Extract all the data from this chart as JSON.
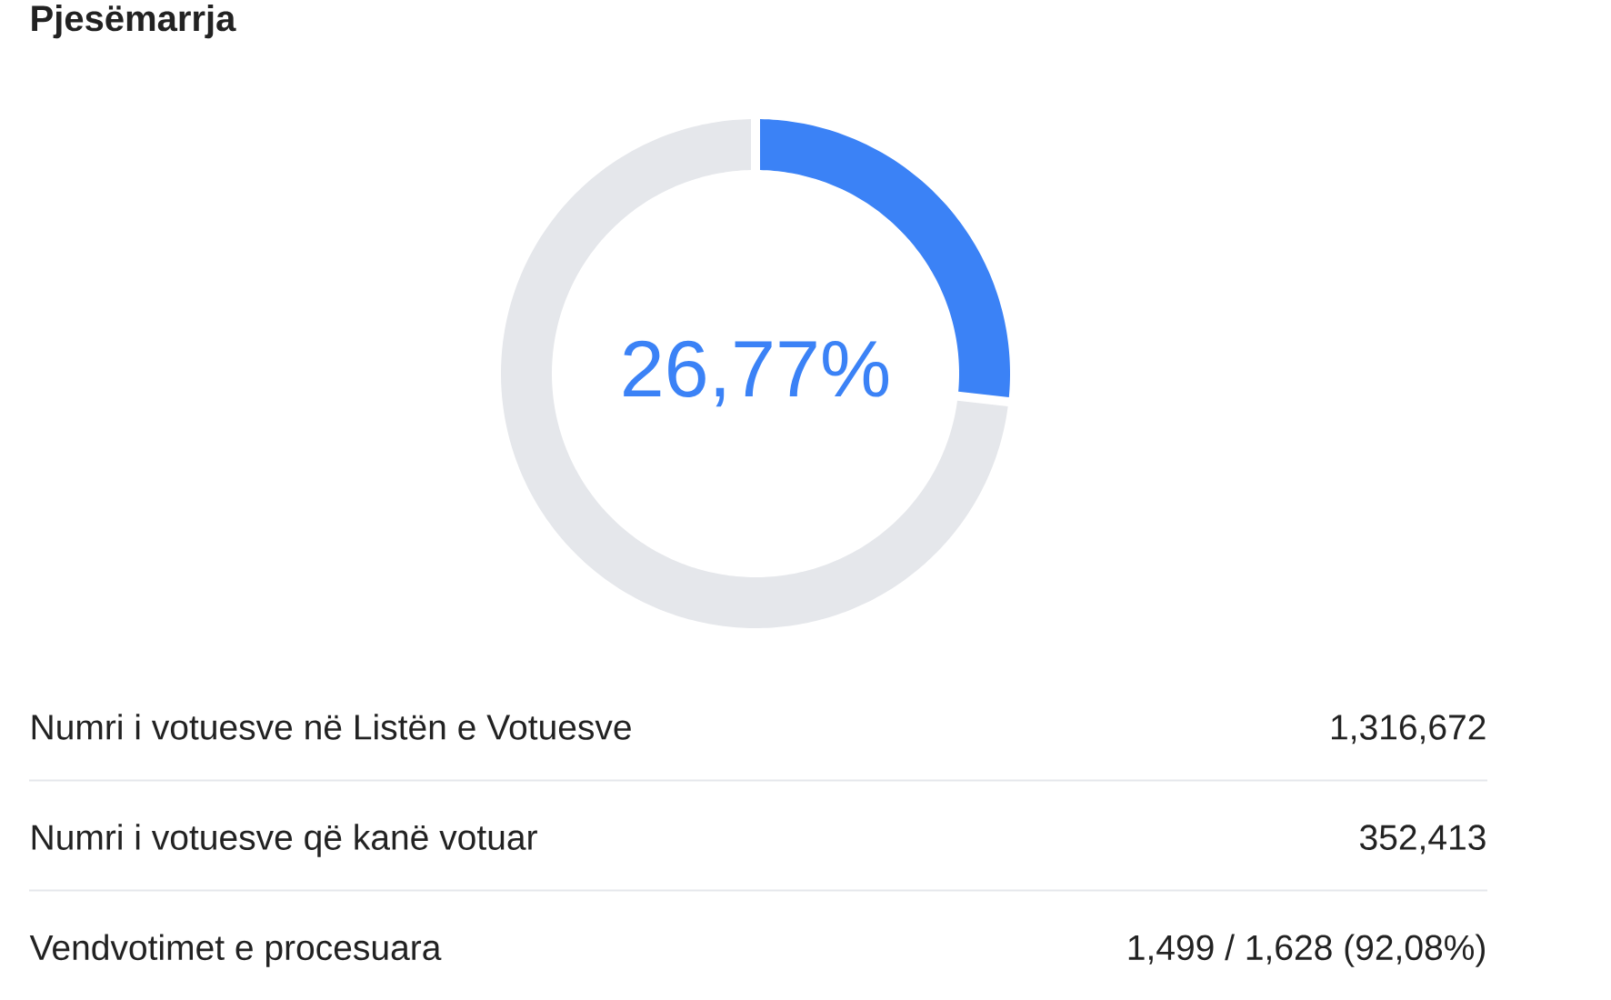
{
  "chart_data": {
    "type": "donut",
    "title": "Pjesëmarrja",
    "categories": [
      null,
      null
    ],
    "values": [
      26.77,
      73.23
    ],
    "colors": [
      "#3b82f6",
      "#e5e7eb"
    ],
    "value_labels": [
      "26,77%",
      null
    ],
    "annotations": [
      "Numri i votuesve në Listën e Votuesve",
      "1,316,672",
      "Numri i votuesve që kanë votuar",
      "352,413",
      "Vendvotimet e procesuara",
      "1,499 / 1,628 (92,08%)"
    ]
  }
}
